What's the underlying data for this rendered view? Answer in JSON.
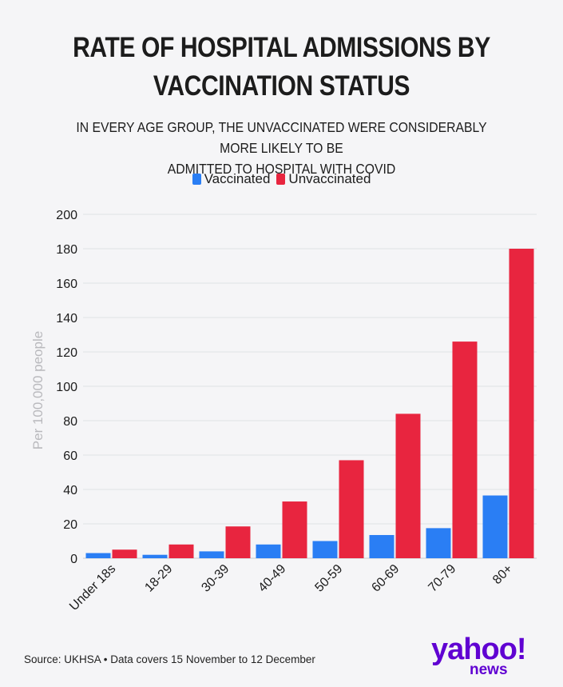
{
  "title_line1": "RATE OF HOSPITAL ADMISSIONS BY",
  "title_line2": "VACCINATION STATUS",
  "subtitle_line1": "IN EVERY AGE GROUP, THE UNVACCINATED WERE CONSIDERABLY MORE LIKELY TO BE",
  "subtitle_line2": "ADMITTED TO HOSPITAL WITH COVID",
  "source": "Source: UKHSA • Data covers 15 November to 12 December",
  "logo": {
    "yahoo": "yahoo!",
    "news": "news"
  },
  "colors": {
    "vaccinated": "#2a7ef4",
    "unvaccinated": "#e8253f",
    "axis_label": "#b9b9bd",
    "grid": "#dfe2e6"
  },
  "chart_data": {
    "type": "bar",
    "title": "RATE OF HOSPITAL ADMISSIONS BY VACCINATION STATUS",
    "subtitle": "IN EVERY AGE GROUP, THE UNVACCINATED WERE CONSIDERABLY MORE LIKELY TO BE ADMITTED TO HOSPITAL WITH COVID",
    "xlabel": "",
    "ylabel": "Per 100,000 people",
    "ylim": [
      0,
      200
    ],
    "yticks": [
      0,
      20,
      40,
      60,
      80,
      100,
      120,
      140,
      160,
      180,
      200
    ],
    "categories": [
      "Under 18s",
      "18-29",
      "30-39",
      "40-49",
      "50-59",
      "60-69",
      "70-79",
      "80+"
    ],
    "series": [
      {
        "name": "Vaccinated",
        "values": [
          3,
          2,
          4,
          8,
          10,
          13.5,
          17.5,
          36.5
        ]
      },
      {
        "name": "Unvaccinated",
        "values": [
          5,
          8,
          18.5,
          33,
          57,
          84,
          126,
          180
        ]
      }
    ],
    "legend": "top-center",
    "grid": true
  }
}
